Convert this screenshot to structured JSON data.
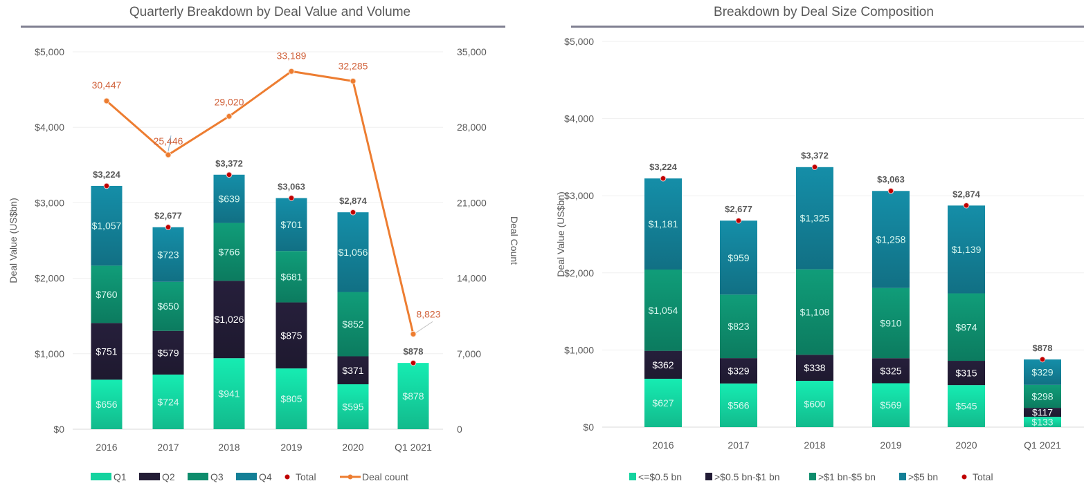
{
  "chart_data": [
    {
      "type": "bar",
      "stacked": true,
      "title": "Quarterly Breakdown by Deal Value and Volume",
      "xlabel": "",
      "ylabel": "Deal Value (US$bn)",
      "y2label": "Deal Count",
      "ylim": [
        0,
        5000
      ],
      "y2lim": [
        0,
        35000
      ],
      "yticks": [
        "$0",
        "$1,000",
        "$2,000",
        "$3,000",
        "$4,000",
        "$5,000"
      ],
      "y2ticks": [
        "0",
        "7,000",
        "14,000",
        "21,000",
        "28,000",
        "35,000"
      ],
      "grid": true,
      "legend_position": "bottom",
      "categories": [
        "2016",
        "2017",
        "2018",
        "2019",
        "2020",
        "Q1 2021"
      ],
      "series": [
        {
          "name": "Q1",
          "color": "#14d39f",
          "values": [
            656,
            724,
            941,
            805,
            595,
            878
          ],
          "labels": [
            "$656",
            "$724",
            "$941",
            "$805",
            "$595",
            "$878"
          ]
        },
        {
          "name": "Q2",
          "color": "#221c35",
          "values": [
            751,
            579,
            1026,
            875,
            371,
            0
          ],
          "labels": [
            "$751",
            "$579",
            "$1,026",
            "$875",
            "$371",
            ""
          ]
        },
        {
          "name": "Q3",
          "color": "#0e8c6c",
          "values": [
            760,
            650,
            766,
            681,
            852,
            0
          ],
          "labels": [
            "$760",
            "$650",
            "$766",
            "$681",
            "$852",
            ""
          ]
        },
        {
          "name": "Q4",
          "color": "#137f96",
          "values": [
            1057,
            723,
            639,
            701,
            1056,
            0
          ],
          "labels": [
            "$1,057",
            "$723",
            "$639",
            "$701",
            "$1,056",
            ""
          ]
        }
      ],
      "totals": {
        "name": "Total",
        "color": "#c00000",
        "values": [
          3224,
          2677,
          3372,
          3063,
          2874,
          878
        ],
        "labels": [
          "$3,224",
          "$2,677",
          "$3,372",
          "$3,063",
          "$2,874",
          "$878"
        ]
      },
      "line": {
        "name": "Deal count",
        "color": "#ed7d31",
        "axis": "right",
        "values": [
          30447,
          25446,
          29020,
          33189,
          32285,
          8823
        ],
        "labels": [
          "30,447",
          "25,446",
          "29,020",
          "33,189",
          "32,285",
          "8,823"
        ]
      }
    },
    {
      "type": "bar",
      "stacked": true,
      "title": "Breakdown by Deal Size Composition",
      "xlabel": "",
      "ylabel": "Deal Value (US$bn)",
      "ylim": [
        0,
        5000
      ],
      "yticks": [
        "$0",
        "$1,000",
        "$2,000",
        "$3,000",
        "$4,000",
        "$5,000"
      ],
      "grid": true,
      "legend_position": "bottom",
      "categories": [
        "2016",
        "2017",
        "2018",
        "2019",
        "2020",
        "Q1 2021"
      ],
      "series": [
        {
          "name": "<=$0.5 bn",
          "color": "#14d39f",
          "values": [
            627,
            566,
            600,
            569,
            545,
            133
          ],
          "labels": [
            "$627",
            "$566",
            "$600",
            "$569",
            "$545",
            "$133"
          ]
        },
        {
          "name": ">$0.5 bn-$1 bn",
          "color": "#221c35",
          "values": [
            362,
            329,
            338,
            325,
            315,
            117
          ],
          "labels": [
            "$362",
            "$329",
            "$338",
            "$325",
            "$315",
            "$117"
          ]
        },
        {
          "name": ">$1 bn-$5 bn",
          "color": "#0e8c6c",
          "values": [
            1054,
            823,
            1108,
            910,
            874,
            298
          ],
          "labels": [
            "$1,054",
            "$823",
            "$1,108",
            "$910",
            "$874",
            "$298"
          ]
        },
        {
          "name": ">$5 bn",
          "color": "#137f96",
          "values": [
            1181,
            959,
            1325,
            1258,
            1139,
            329
          ],
          "labels": [
            "$1,181",
            "$959",
            "$1,325",
            "$1,258",
            "$1,139",
            "$329"
          ]
        }
      ],
      "totals": {
        "name": "Total",
        "color": "#c00000",
        "values": [
          3224,
          2677,
          3372,
          3063,
          2874,
          878
        ],
        "labels": [
          "$3,224",
          "$2,677",
          "$3,372",
          "$3,063",
          "$2,874",
          "$878"
        ]
      }
    }
  ]
}
